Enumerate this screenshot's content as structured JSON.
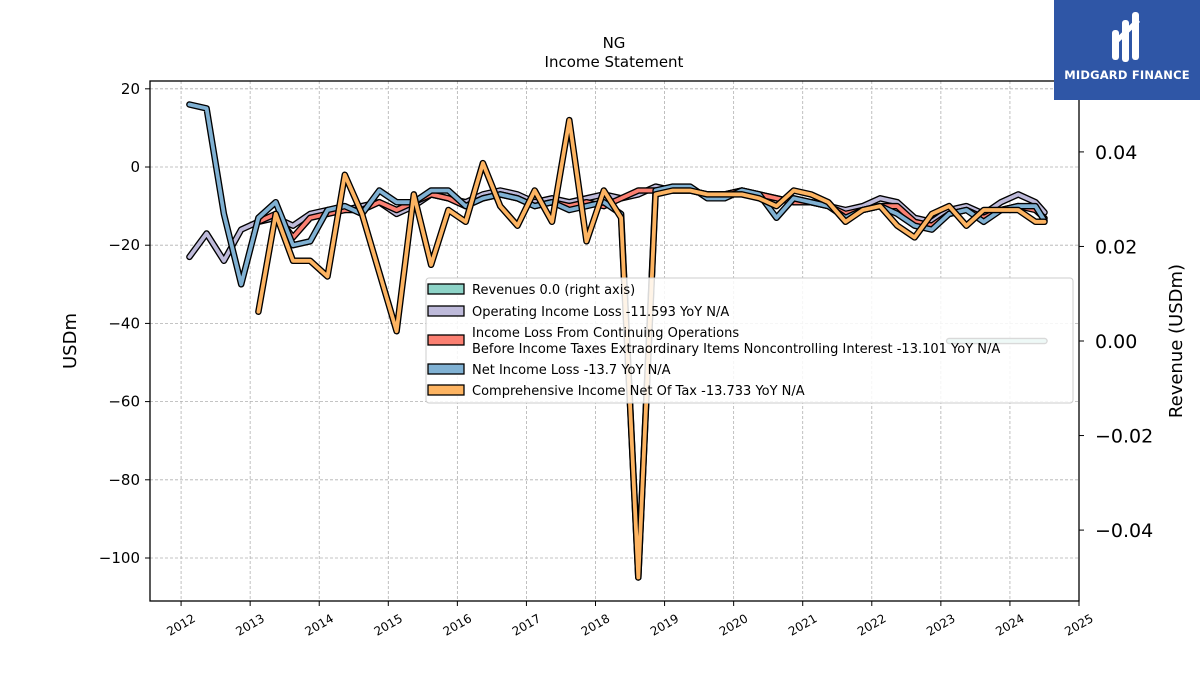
{
  "chart_data": {
    "type": "line",
    "title": "NG",
    "subtitle": "Income Statement",
    "ylabel": "USDm",
    "ylabel_right": "Revenue (USDm)",
    "ylim": [
      -111,
      22
    ],
    "ylim_right": [
      -0.055,
      0.055
    ],
    "xlim": [
      2011.55,
      2025.0
    ],
    "x_ticks": [
      "2012",
      "2013",
      "2014",
      "2015",
      "2016",
      "2017",
      "2018",
      "2019",
      "2020",
      "2021",
      "2022",
      "2023",
      "2024",
      "2025"
    ],
    "y_ticks": [
      20,
      0,
      -20,
      -40,
      -60,
      -80,
      -100
    ],
    "y_ticks_right": [
      0.04,
      0.02,
      0.0,
      -0.02,
      -0.04
    ],
    "grid": true,
    "legend_placement": "center-right",
    "series": [
      {
        "name": "Revenues",
        "legend_label": "Revenues  0.0 (right axis)",
        "axis": "right",
        "color": "#8dd3c7",
        "x": [
          2023.12,
          2024.5
        ],
        "values": [
          0.0,
          0.0
        ]
      },
      {
        "name": "Operating Income Loss",
        "legend_label": "Operating Income Loss  -11.593 YoY N/A",
        "color": "#bebada",
        "x": [
          2012.12,
          2012.37,
          2012.62,
          2012.87,
          2013.12,
          2013.37,
          2013.62,
          2013.87,
          2014.12,
          2014.37,
          2014.62,
          2014.87,
          2015.12,
          2015.37,
          2015.62,
          2015.87,
          2016.12,
          2016.37,
          2016.62,
          2016.87,
          2017.12,
          2017.37,
          2017.62,
          2017.87,
          2018.12,
          2018.37,
          2018.62,
          2018.87,
          2019.12,
          2019.37,
          2019.62,
          2019.87,
          2020.12,
          2020.37,
          2020.62,
          2020.87,
          2021.12,
          2021.37,
          2021.62,
          2021.87,
          2022.12,
          2022.37,
          2022.62,
          2022.87,
          2023.12,
          2023.37,
          2023.62,
          2023.87,
          2024.12,
          2024.37,
          2024.5
        ],
        "values": [
          -23,
          -17,
          -24,
          -16,
          -14,
          -13,
          -15,
          -12,
          -11,
          -11,
          -10,
          -9,
          -12,
          -10,
          -7,
          -8,
          -9,
          -7,
          -6,
          -7,
          -9,
          -8,
          -9,
          -8,
          -7,
          -8,
          -7,
          -5,
          -6,
          -6,
          -7,
          -7,
          -6,
          -7,
          -8,
          -9,
          -9,
          -10,
          -11,
          -10,
          -8,
          -9,
          -13,
          -14,
          -11,
          -10,
          -12,
          -9,
          -7,
          -9,
          -11.6
        ]
      },
      {
        "name": "Income Loss From Continuing Operations Before Income Taxes Extraordinary Items Noncontrolling Interest",
        "legend_label_line1": "Income Loss From Continuing Operations",
        "legend_label_line2": "Before Income Taxes Extraordinary Items Noncontrolling Interest  -13.101 YoY N/A",
        "color": "#fb8072",
        "x": [
          2013.12,
          2013.37,
          2013.62,
          2013.87,
          2014.12,
          2014.37,
          2014.62,
          2014.87,
          2015.12,
          2015.37,
          2015.62,
          2015.87,
          2016.12,
          2016.37,
          2016.62,
          2016.87,
          2017.12,
          2017.37,
          2017.62,
          2017.87,
          2018.12,
          2018.37,
          2018.62,
          2018.87,
          2019.12,
          2019.37,
          2019.62,
          2019.87,
          2020.12,
          2020.37,
          2020.62,
          2020.87,
          2021.12,
          2021.37,
          2021.62,
          2021.87,
          2022.12,
          2022.37,
          2022.62,
          2022.87,
          2023.12,
          2023.37,
          2023.62,
          2023.87,
          2024.12,
          2024.37,
          2024.5
        ],
        "values": [
          -14,
          -12,
          -18,
          -13,
          -12,
          -11,
          -11,
          -9,
          -11,
          -9,
          -7,
          -8,
          -10,
          -8,
          -7,
          -8,
          -10,
          -9,
          -10,
          -9,
          -10,
          -8,
          -6,
          -6,
          -6,
          -6,
          -7,
          -7,
          -6,
          -7,
          -8,
          -9,
          -9,
          -10,
          -12,
          -11,
          -10,
          -10,
          -14,
          -15,
          -12,
          -11,
          -13,
          -11,
          -10,
          -11,
          -13.1
        ]
      },
      {
        "name": "Net Income Loss",
        "legend_label": "Net Income Loss  -13.7 YoY N/A",
        "color": "#80b1d3",
        "x": [
          2012.12,
          2012.37,
          2012.62,
          2012.87,
          2013.12,
          2013.37,
          2013.62,
          2013.87,
          2014.12,
          2014.37,
          2014.62,
          2014.87,
          2015.12,
          2015.37,
          2015.62,
          2015.87,
          2016.12,
          2016.37,
          2016.62,
          2016.87,
          2017.12,
          2017.37,
          2017.62,
          2017.87,
          2018.12,
          2018.37,
          2018.62,
          2018.87,
          2019.12,
          2019.37,
          2019.62,
          2019.87,
          2020.12,
          2020.37,
          2020.62,
          2020.87,
          2021.12,
          2021.37,
          2021.62,
          2021.87,
          2022.12,
          2022.37,
          2022.62,
          2022.87,
          2023.12,
          2023.37,
          2023.62,
          2023.87,
          2024.12,
          2024.37,
          2024.5
        ],
        "values": [
          16,
          15,
          -12,
          -30,
          -13,
          -9,
          -20,
          -19,
          -11,
          -10,
          -12,
          -6,
          -9,
          -9,
          -6,
          -6,
          -10,
          -8,
          -7,
          -8,
          -10,
          -9,
          -11,
          -10,
          -9,
          -12,
          -105,
          -6,
          -5,
          -5,
          -8,
          -8,
          -6,
          -7,
          -13,
          -8,
          -9,
          -10,
          -13,
          -11,
          -10,
          -12,
          -15,
          -16,
          -12,
          -11,
          -14,
          -11,
          -10,
          -10,
          -13.7
        ]
      },
      {
        "name": "Comprehensive Income Net Of Tax",
        "legend_label": "Comprehensive Income Net Of Tax  -13.733 YoY N/A",
        "color": "#fdb462",
        "x": [
          2013.12,
          2013.37,
          2013.62,
          2013.87,
          2014.12,
          2014.37,
          2014.62,
          2014.87,
          2015.12,
          2015.37,
          2015.62,
          2015.87,
          2016.12,
          2016.37,
          2016.62,
          2016.87,
          2017.12,
          2017.37,
          2017.62,
          2017.87,
          2018.12,
          2018.37,
          2018.62,
          2018.87,
          2019.12,
          2019.37,
          2019.62,
          2019.87,
          2020.12,
          2020.37,
          2020.62,
          2020.87,
          2021.12,
          2021.37,
          2021.62,
          2021.87,
          2022.12,
          2022.37,
          2022.62,
          2022.87,
          2023.12,
          2023.37,
          2023.62,
          2023.87,
          2024.12,
          2024.37,
          2024.5
        ],
        "values": [
          -37,
          -12,
          -24,
          -24,
          -28,
          -2,
          -12,
          -27,
          -42,
          -7,
          -25,
          -11,
          -14,
          1,
          -10,
          -15,
          -6,
          -14,
          12,
          -19,
          -6,
          -13,
          -105,
          -7,
          -6,
          -6,
          -7,
          -7,
          -7,
          -8,
          -10,
          -6,
          -7,
          -9,
          -14,
          -11,
          -10,
          -15,
          -18,
          -12,
          -10,
          -15,
          -11,
          -11,
          -11,
          -14,
          -14
        ]
      }
    ]
  },
  "brand": {
    "name": "MIDGARD FINANCE"
  }
}
